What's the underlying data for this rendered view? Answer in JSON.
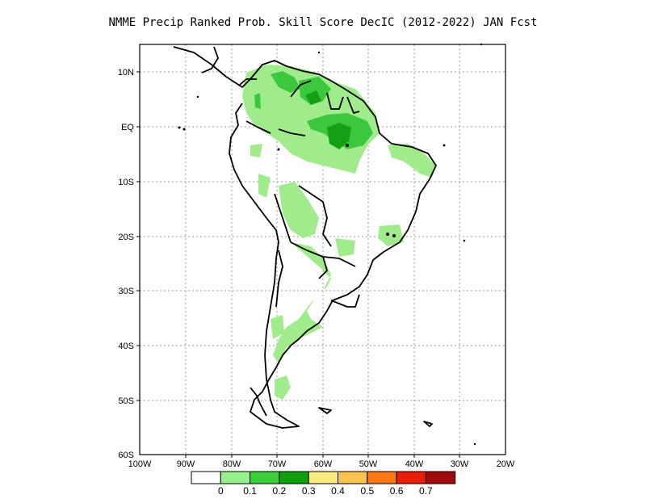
{
  "title": "NMME Precip Ranked Prob. Skill Score DecIC (2012-2022) JAN Fcst",
  "map": {
    "lon_range": [
      -100,
      -20
    ],
    "lat_range": [
      -60,
      15
    ],
    "lon_ticks": [
      "100W",
      "90W",
      "80W",
      "70W",
      "60W",
      "50W",
      "40W",
      "30W",
      "20W"
    ],
    "lat_ticks": [
      "10N",
      "EQ",
      "10S",
      "20S",
      "30S",
      "40S",
      "50S",
      "60S"
    ],
    "gridlines": true,
    "shading_colors": {
      "0-0.1": "#a0eb8c",
      "0.1-0.2": "#3cc83c",
      "0.2-0.3": "#14a014"
    }
  },
  "colorbar": {
    "labels": [
      "0",
      "0.1",
      "0.2",
      "0.3",
      "0.4",
      "0.5",
      "0.6",
      "0.7"
    ],
    "colors": [
      "#ffffff",
      "#96f08c",
      "#3ccd3c",
      "#0fa00f",
      "#faeb82",
      "#fac350",
      "#fa7814",
      "#e61e0a",
      "#a00a0a"
    ]
  }
}
